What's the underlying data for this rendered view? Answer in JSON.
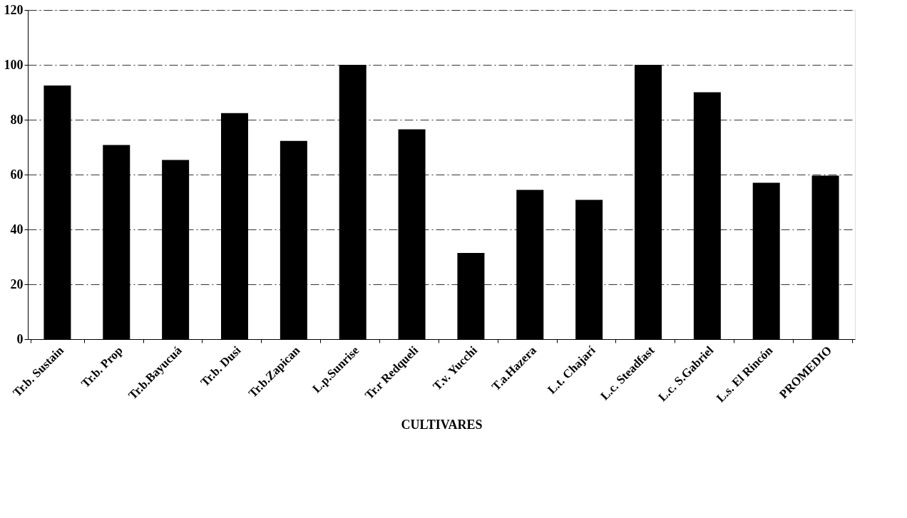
{
  "chart_data": {
    "type": "bar",
    "xlabel": "CULTIVARES",
    "categories": [
      "Tr.b. Sustain",
      "Tr.b. Prop",
      "Tr.b.Bayucuá",
      "Tr.b. Dusi",
      "Tr.b.Zapican",
      "L.p.Sunrise",
      "Tr.r Redqueli",
      "T.v. Yucchi",
      "T.a.Hazera",
      "L.t. Chajarí",
      "L.c. Steadfast",
      "L.c. S.Gabriel",
      "L.s. El Rincón",
      "PROMEDIO"
    ],
    "values": [
      92.5,
      70.8,
      65.3,
      82.4,
      72.3,
      100,
      76.5,
      31.4,
      54.4,
      50.8,
      100,
      90,
      57,
      59.6
    ],
    "color": "#000000",
    "ylim": [
      0,
      120
    ],
    "yticks": [
      0,
      20,
      40,
      60,
      80,
      100,
      120
    ],
    "grid": "y"
  }
}
